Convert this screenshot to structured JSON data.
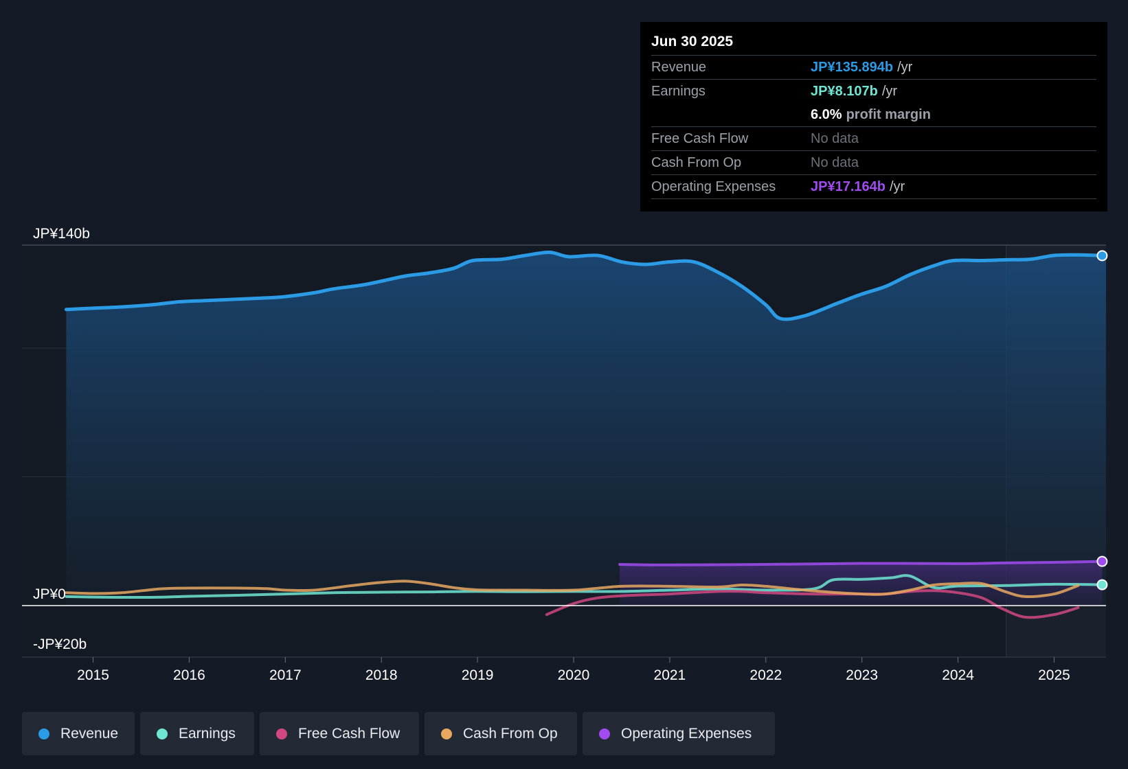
{
  "tooltip": {
    "date": "Jun 30 2025",
    "rows": [
      {
        "label": "Revenue",
        "value": "JP¥135.894b",
        "unit": "/yr",
        "color": "#2b9be6"
      },
      {
        "label": "Earnings",
        "value": "JP¥8.107b",
        "unit": "/yr",
        "color": "#6fe6d4"
      },
      {
        "label": "",
        "value": "6.0%",
        "unit": "profit margin",
        "color": "#ffffff"
      },
      {
        "label": "Free Cash Flow",
        "value": "No data",
        "unit": "",
        "color": "#6b7079"
      },
      {
        "label": "Cash From Op",
        "value": "No data",
        "unit": "",
        "color": "#6b7079"
      },
      {
        "label": "Operating Expenses",
        "value": "JP¥17.164b",
        "unit": "/yr",
        "color": "#a14cf0"
      }
    ]
  },
  "legend": [
    {
      "label": "Revenue",
      "color": "#2b9be6"
    },
    {
      "label": "Earnings",
      "color": "#6fe6d4"
    },
    {
      "label": "Free Cash Flow",
      "color": "#d0487f"
    },
    {
      "label": "Cash From Op",
      "color": "#e8a860"
    },
    {
      "label": "Operating Expenses",
      "color": "#a14cf0"
    }
  ],
  "chart_data": {
    "type": "line",
    "ylim": [
      -20,
      140
    ],
    "ytick_labels": [
      {
        "value": 140,
        "label": "JP¥140b"
      },
      {
        "value": 0,
        "label": "JP¥0"
      },
      {
        "value": -20,
        "label": "-JP¥20b"
      }
    ],
    "gridlines": [
      140,
      100,
      50,
      0
    ],
    "xlim": [
      2014.26,
      2025.54
    ],
    "xtick_labels": [
      "2015",
      "2016",
      "2017",
      "2018",
      "2019",
      "2020",
      "2021",
      "2022",
      "2023",
      "2024",
      "2025"
    ],
    "forecast_start": 2024.5,
    "series": [
      {
        "name": "Revenue",
        "color": "#2b9be6",
        "area": true,
        "end_marker": true,
        "x": [
          2014.72,
          2015.0,
          2015.3,
          2015.6,
          2015.9,
          2016.2,
          2016.5,
          2016.8,
          2017.0,
          2017.3,
          2017.5,
          2017.8,
          2018.0,
          2018.25,
          2018.5,
          2018.75,
          2018.95,
          2019.25,
          2019.5,
          2019.75,
          2019.95,
          2020.25,
          2020.5,
          2020.75,
          2021.0,
          2021.25,
          2021.5,
          2021.75,
          2022.0,
          2022.15,
          2022.4,
          2022.75,
          2023.0,
          2023.25,
          2023.5,
          2023.75,
          2023.95,
          2024.25,
          2024.5,
          2024.75,
          2025.0,
          2025.25,
          2025.5
        ],
        "y": [
          115,
          115.5,
          116,
          116.8,
          118,
          118.5,
          119,
          119.5,
          120,
          121.5,
          123,
          124.5,
          126,
          128,
          129.2,
          131,
          134,
          134.5,
          136,
          137.2,
          135.5,
          136,
          133.5,
          132.5,
          133.5,
          133.5,
          129.5,
          124,
          116.8,
          111.5,
          112.5,
          117.5,
          121,
          124,
          128.5,
          132,
          134,
          134,
          134.3,
          134.5,
          136,
          136.2,
          135.9
        ]
      },
      {
        "name": "Earnings",
        "color": "#6fe6d4",
        "area": false,
        "end_marker": true,
        "x": [
          2014.72,
          2015.0,
          2015.6,
          2016.0,
          2016.5,
          2017.0,
          2017.5,
          2018.0,
          2018.5,
          2019.0,
          2019.5,
          2020.0,
          2020.5,
          2021.0,
          2021.5,
          2022.0,
          2022.5,
          2022.7,
          2023.0,
          2023.3,
          2023.5,
          2023.75,
          2024.0,
          2024.5,
          2025.0,
          2025.5
        ],
        "y": [
          3.5,
          3.3,
          3.2,
          3.6,
          4,
          4.5,
          5,
          5.2,
          5.3,
          5.5,
          5.4,
          5.5,
          5.5,
          6,
          6.5,
          6,
          6.5,
          10,
          10.2,
          10.8,
          11.5,
          7,
          7.6,
          7.8,
          8.3,
          8.1
        ]
      },
      {
        "name": "Free Cash Flow",
        "color": "#d0487f",
        "area": false,
        "end_marker": false,
        "x": [
          2019.72,
          2020.0,
          2020.25,
          2020.5,
          2020.75,
          2021.0,
          2021.5,
          2021.75,
          2022.0,
          2022.5,
          2023.0,
          2023.25,
          2023.5,
          2023.75,
          2024.0,
          2024.25,
          2024.45,
          2024.7,
          2025.0,
          2025.25
        ],
        "y": [
          -3.5,
          0.8,
          3,
          3.8,
          4.2,
          4.5,
          5.5,
          5.5,
          5,
          4.5,
          4.5,
          4.5,
          5.5,
          5.8,
          5,
          3,
          -1,
          -4.5,
          -3.5,
          -0.8
        ]
      },
      {
        "name": "Cash From Op",
        "color": "#e8a860",
        "area": false,
        "end_marker": false,
        "x": [
          2014.72,
          2015.0,
          2015.3,
          2015.7,
          2016.0,
          2016.5,
          2016.8,
          2017.0,
          2017.3,
          2017.7,
          2018.0,
          2018.25,
          2018.5,
          2018.75,
          2019.0,
          2019.5,
          2020.0,
          2020.5,
          2021.0,
          2021.5,
          2021.75,
          2022.0,
          2022.5,
          2023.0,
          2023.25,
          2023.5,
          2023.75,
          2024.0,
          2024.25,
          2024.5,
          2024.7,
          2025.0,
          2025.25
        ],
        "y": [
          5,
          4.7,
          5,
          6.5,
          6.8,
          6.8,
          6.6,
          6,
          6,
          7.8,
          9,
          9.5,
          8.5,
          7,
          6.1,
          6,
          6,
          7.5,
          7.5,
          7.2,
          8,
          7.5,
          5.7,
          4.5,
          4.5,
          6,
          8,
          8.5,
          8.5,
          5.3,
          3.5,
          4.5,
          7.8
        ]
      },
      {
        "name": "Operating Expenses",
        "color": "#a14cf0",
        "area": true,
        "end_marker": true,
        "x": [
          2020.48,
          2021.0,
          2022.0,
          2023.0,
          2024.0,
          2024.5,
          2025.0,
          2025.5
        ],
        "y": [
          16,
          15.8,
          16,
          16.4,
          16.3,
          16.6,
          16.8,
          17.16
        ]
      }
    ]
  }
}
